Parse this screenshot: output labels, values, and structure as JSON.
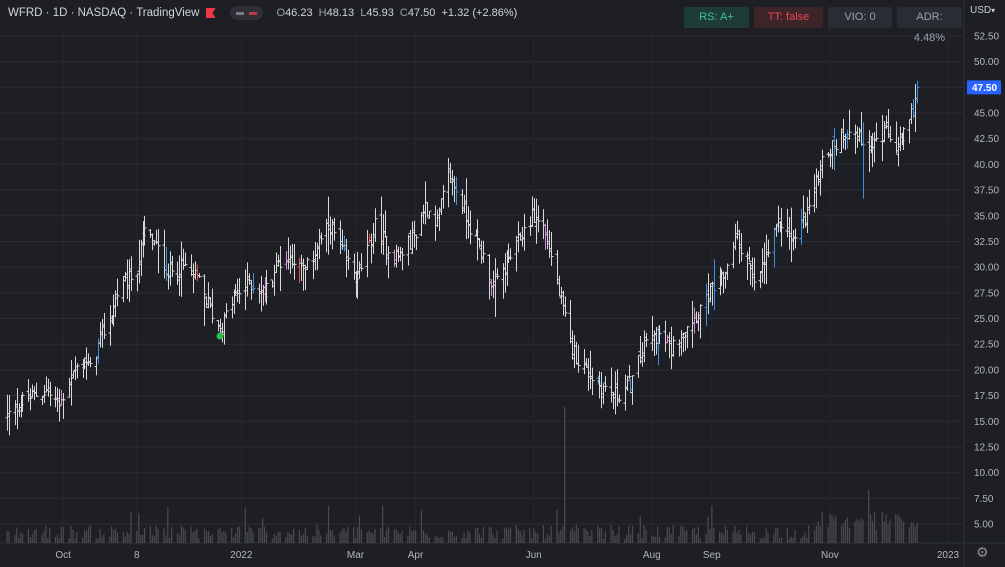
{
  "header": {
    "symbol_title": "WFRD · 1D · NASDAQ · TradingView",
    "open_label": "O",
    "open": "46.23",
    "high_label": "H",
    "high": "48.13",
    "low_label": "L",
    "low": "45.93",
    "close_label": "C",
    "close": "47.50",
    "change": "+1.32 (+2.86%)"
  },
  "badges": {
    "rs": "RS: A+",
    "tt": "TT: false",
    "vio": "VIO: 0",
    "adr": "ADR: 4.48%"
  },
  "currency": "USD",
  "colors": {
    "background": "#1e1f25",
    "bar_default": "#d8d8d8",
    "bar_blue": "#3d8fe0",
    "bar_pink": "#d98bd9",
    "bar_red": "#e54b4b",
    "bar_green": "#32c35a",
    "volume": "#4a4b52",
    "price_tag": "#2962ff",
    "low_marker": "#2fbf4b"
  },
  "chart_data": {
    "type": "ohlc",
    "grid": true,
    "y_axis": {
      "ticks": [
        "52.50",
        "50.00",
        "47.50",
        "45.00",
        "42.50",
        "40.00",
        "37.50",
        "35.00",
        "32.50",
        "30.00",
        "27.50",
        "25.00",
        "22.50",
        "20.00",
        "17.50",
        "15.00",
        "12.50",
        "10.00",
        "7.50",
        "5.00"
      ],
      "min": 3.0,
      "max": 54.0,
      "last_price": "47.50"
    },
    "x_axis": {
      "ticks": [
        "Oct",
        "8",
        "2022",
        "Mar",
        "Apr",
        "Jun",
        "Aug",
        "Sep",
        "Nov",
        "2023"
      ],
      "start": "2021-09-02",
      "end": "2022-12-31"
    },
    "anchors": [
      [
        "2021-09-02",
        15.5
      ],
      [
        "2021-09-10",
        17.0
      ],
      [
        "2021-09-22",
        18.0
      ],
      [
        "2021-09-29",
        16.5
      ],
      [
        "2021-10-05",
        19.5
      ],
      [
        "2021-10-12",
        21.0
      ],
      [
        "2021-10-15",
        20.0
      ],
      [
        "2021-10-20",
        23.0
      ],
      [
        "2021-10-25",
        25.0
      ],
      [
        "2021-10-29",
        27.5
      ],
      [
        "2021-11-03",
        28.5
      ],
      [
        "2021-11-08",
        30.0
      ],
      [
        "2021-11-12",
        33.5
      ],
      [
        "2021-11-18",
        32.0
      ],
      [
        "2021-11-24",
        29.5
      ],
      [
        "2021-12-03",
        30.0
      ],
      [
        "2021-12-10",
        28.5
      ],
      [
        "2021-12-17",
        25.5
      ],
      [
        "2021-12-21",
        24.0
      ],
      [
        "2021-12-28",
        27.0
      ],
      [
        "2022-01-05",
        28.5
      ],
      [
        "2022-01-13",
        27.5
      ],
      [
        "2022-01-20",
        30.5
      ],
      [
        "2022-01-27",
        31.0
      ],
      [
        "2022-02-03",
        29.5
      ],
      [
        "2022-02-10",
        32.5
      ],
      [
        "2022-02-16",
        34.0
      ],
      [
        "2022-02-23",
        31.0
      ],
      [
        "2022-03-02",
        29.0
      ],
      [
        "2022-03-07",
        31.5
      ],
      [
        "2022-03-11",
        34.0
      ],
      [
        "2022-03-17",
        32.0
      ],
      [
        "2022-03-23",
        31.0
      ],
      [
        "2022-03-31",
        33.0
      ],
      [
        "2022-04-06",
        36.0
      ],
      [
        "2022-04-12",
        34.5
      ],
      [
        "2022-04-18",
        39.0
      ],
      [
        "2022-04-22",
        37.5
      ],
      [
        "2022-04-29",
        34.0
      ],
      [
        "2022-05-05",
        31.5
      ],
      [
        "2022-05-11",
        28.0
      ],
      [
        "2022-05-17",
        30.0
      ],
      [
        "2022-05-24",
        32.5
      ],
      [
        "2022-05-31",
        35.0
      ],
      [
        "2022-06-06",
        34.0
      ],
      [
        "2022-06-10",
        31.0
      ],
      [
        "2022-06-15",
        26.5
      ],
      [
        "2022-06-20",
        22.5
      ],
      [
        "2022-06-24",
        21.0
      ],
      [
        "2022-06-30",
        19.5
      ],
      [
        "2022-07-05",
        18.5
      ],
      [
        "2022-07-14",
        17.5
      ],
      [
        "2022-07-22",
        19.0
      ],
      [
        "2022-07-28",
        22.5
      ],
      [
        "2022-08-04",
        23.5
      ],
      [
        "2022-08-11",
        22.0
      ],
      [
        "2022-08-17",
        24.0
      ],
      [
        "2022-08-24",
        25.5
      ],
      [
        "2022-08-31",
        27.5
      ],
      [
        "2022-09-07",
        29.0
      ],
      [
        "2022-09-13",
        33.0
      ],
      [
        "2022-09-19",
        31.0
      ],
      [
        "2022-09-23",
        28.0
      ],
      [
        "2022-09-30",
        31.5
      ],
      [
        "2022-10-06",
        34.5
      ],
      [
        "2022-10-13",
        32.5
      ],
      [
        "2022-10-20",
        35.5
      ],
      [
        "2022-10-25",
        38.0
      ],
      [
        "2022-10-28",
        41.0
      ],
      [
        "2022-11-04",
        42.0
      ],
      [
        "2022-11-10",
        43.5
      ],
      [
        "2022-11-17",
        42.5
      ],
      [
        "2022-11-23",
        42.0
      ],
      [
        "2022-11-30",
        43.0
      ],
      [
        "2022-12-06",
        41.5
      ],
      [
        "2022-12-12",
        44.0
      ],
      [
        "2022-12-16",
        47.5
      ]
    ],
    "last_bar": {
      "date": "2022-12-16",
      "open": 46.23,
      "high": 48.13,
      "low": 45.93,
      "close": 47.5
    },
    "swing_low_marker": {
      "date": "2021-12-21",
      "price": 23.3
    },
    "volume_spike": {
      "date": "2022-06-17"
    }
  },
  "icons": {
    "settings": "gear-icon",
    "currency_menu": "chevron-down-icon"
  }
}
